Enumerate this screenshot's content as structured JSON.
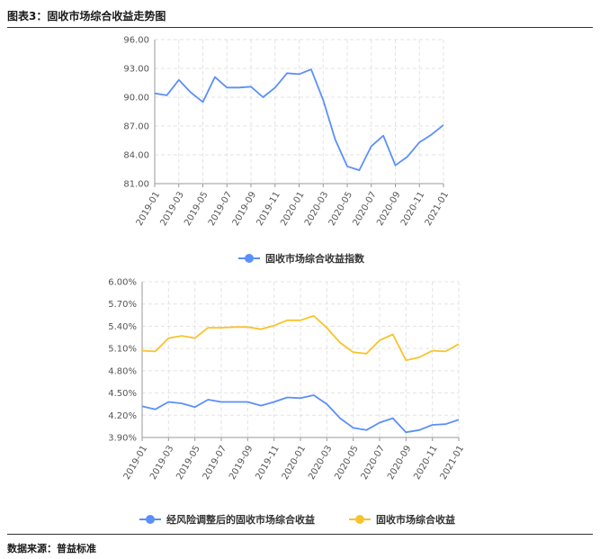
{
  "header": {
    "title": "图表3：固收市场综合收益走势图"
  },
  "footer": {
    "source": "数据来源：普益标准"
  },
  "chart_data": [
    {
      "type": "line",
      "title": "",
      "xlabel": "",
      "ylabel": "",
      "x": [
        "2019-01",
        "2019-02",
        "2019-03",
        "2019-04",
        "2019-05",
        "2019-06",
        "2019-07",
        "2019-08",
        "2019-09",
        "2019-10",
        "2019-11",
        "2019-12",
        "2020-01",
        "2020-02",
        "2020-03",
        "2020-04",
        "2020-05",
        "2020-06",
        "2020-07",
        "2020-08",
        "2020-09",
        "2020-10",
        "2020-11",
        "2020-12",
        "2021-01"
      ],
      "x_tick_labels": [
        "2019-01",
        "2019-03",
        "2019-05",
        "2019-07",
        "2019-09",
        "2019-11",
        "2020-01",
        "2020-03",
        "2020-05",
        "2020-07",
        "2020-09",
        "2020-11",
        "2021-01"
      ],
      "ylim": [
        81,
        96
      ],
      "y_ticks": [
        "96.00",
        "93.00",
        "90.00",
        "87.00",
        "84.00",
        "81.00"
      ],
      "grid": true,
      "legend_position": "bottom",
      "series": [
        {
          "name": "固收市场综合收益指数",
          "color": "#5b8ff9",
          "values": [
            90.4,
            90.2,
            91.8,
            90.5,
            89.5,
            92.1,
            91.0,
            91.0,
            91.1,
            90.0,
            91.0,
            92.5,
            92.4,
            92.9,
            89.7,
            85.6,
            82.8,
            82.4,
            84.9,
            86.0,
            82.9,
            83.8,
            85.3,
            86.1,
            87.1
          ]
        }
      ]
    },
    {
      "type": "line",
      "title": "",
      "xlabel": "",
      "ylabel": "",
      "x": [
        "2019-01",
        "2019-02",
        "2019-03",
        "2019-04",
        "2019-05",
        "2019-06",
        "2019-07",
        "2019-08",
        "2019-09",
        "2019-10",
        "2019-11",
        "2019-12",
        "2020-01",
        "2020-02",
        "2020-03",
        "2020-04",
        "2020-05",
        "2020-06",
        "2020-07",
        "2020-08",
        "2020-09",
        "2020-10",
        "2020-11",
        "2020-12",
        "2021-01"
      ],
      "x_tick_labels": [
        "2019-01",
        "2019-03",
        "2019-05",
        "2019-07",
        "2019-09",
        "2019-11",
        "2020-01",
        "2020-03",
        "2020-05",
        "2020-07",
        "2020-09",
        "2020-11",
        "2021-01"
      ],
      "ylim": [
        3.9,
        6.0
      ],
      "y_ticks": [
        "6.00%",
        "5.70%",
        "5.40%",
        "5.10%",
        "4.80%",
        "4.50%",
        "4.20%",
        "3.90%"
      ],
      "grid": true,
      "legend_position": "bottom",
      "series": [
        {
          "name": "经风险调整后的固收市场综合收益",
          "color": "#5b8ff9",
          "values": [
            4.32,
            4.28,
            4.38,
            4.36,
            4.31,
            4.41,
            4.38,
            4.38,
            4.38,
            4.33,
            4.38,
            4.44,
            4.43,
            4.47,
            4.35,
            4.16,
            4.03,
            4.0,
            4.1,
            4.16,
            3.97,
            4.0,
            4.07,
            4.08,
            4.14
          ]
        },
        {
          "name": "固收市场综合收益",
          "color": "#f8c32c",
          "values": [
            5.07,
            5.06,
            5.24,
            5.27,
            5.24,
            5.38,
            5.38,
            5.39,
            5.39,
            5.36,
            5.41,
            5.48,
            5.48,
            5.54,
            5.38,
            5.18,
            5.05,
            5.03,
            5.21,
            5.29,
            4.94,
            4.98,
            5.07,
            5.06,
            5.16
          ]
        }
      ]
    }
  ]
}
